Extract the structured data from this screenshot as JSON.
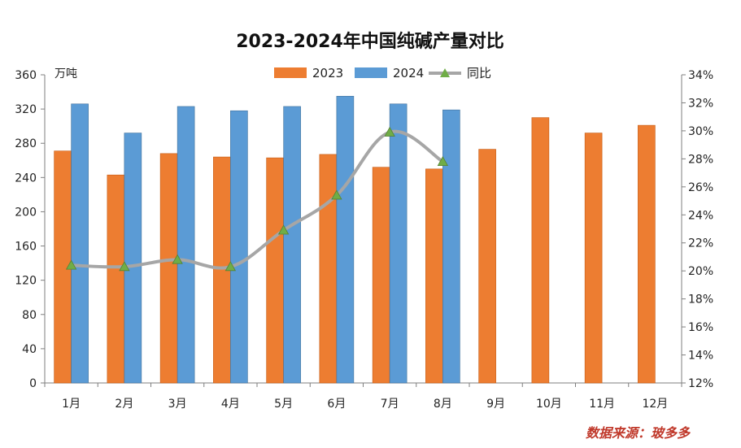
{
  "chart_data": {
    "type": "bar",
    "title": "2023-2024年中国纯碱产量对比",
    "unit_label": "万吨",
    "categories": [
      "1月",
      "2月",
      "3月",
      "4月",
      "5月",
      "6月",
      "7月",
      "8月",
      "9月",
      "10月",
      "11月",
      "12月"
    ],
    "series": [
      {
        "name": "2023",
        "type": "bar",
        "color": "#ED7D31",
        "values": [
          271,
          243,
          268,
          264,
          263,
          267,
          252,
          250,
          273,
          310,
          292,
          301
        ]
      },
      {
        "name": "2024",
        "type": "bar",
        "color": "#5B9BD5",
        "values": [
          326,
          292,
          323,
          318,
          323,
          335,
          326,
          319,
          null,
          null,
          null,
          null
        ]
      },
      {
        "name": "同比",
        "type": "line",
        "axis": "right",
        "color": "#A6A6A6",
        "marker_color": "#70AD47",
        "values": [
          20.4,
          20.3,
          20.8,
          20.3,
          22.9,
          25.4,
          29.9,
          27.8,
          null,
          null,
          null,
          null
        ]
      }
    ],
    "y_left": {
      "min": 0,
      "max": 360,
      "step": 40,
      "ticks": [
        "0",
        "40",
        "80",
        "120",
        "160",
        "200",
        "240",
        "280",
        "320",
        "360"
      ]
    },
    "y_right": {
      "min": 12,
      "max": 34,
      "step": 2,
      "ticks": [
        "12%",
        "14%",
        "16%",
        "18%",
        "20%",
        "22%",
        "24%",
        "26%",
        "28%",
        "30%",
        "32%",
        "34%"
      ]
    },
    "legend": {
      "position": "top-center",
      "entries": [
        "2023",
        "2024",
        "同比"
      ]
    },
    "grid": false,
    "source": "数据来源：玻多多"
  }
}
